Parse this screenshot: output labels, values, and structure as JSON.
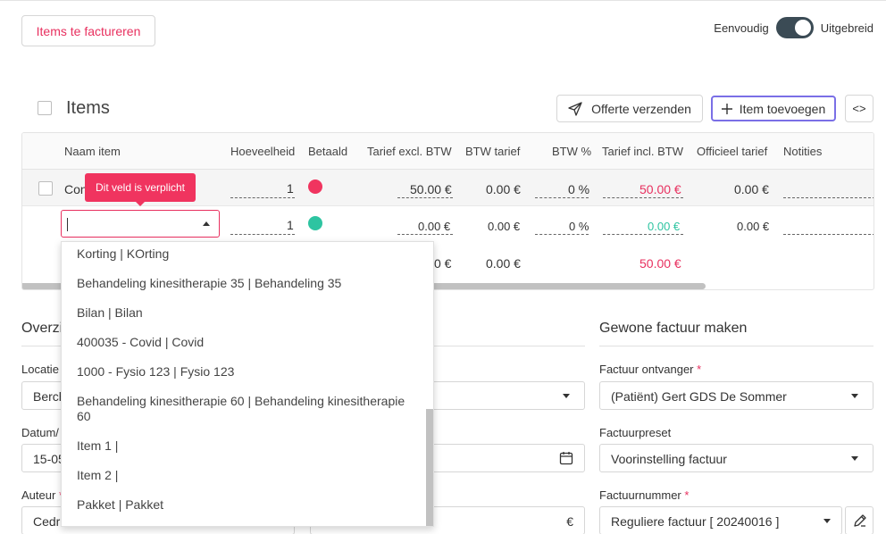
{
  "header": {
    "items_to_invoice_label": "Items te factureren",
    "toggle_left_label": "Eenvoudig",
    "toggle_right_label": "Uitgebreid"
  },
  "items": {
    "title": "Items",
    "send_quote_label": "Offerte verzenden",
    "add_item_label": "Item toevoegen",
    "code_label": "<>"
  },
  "table": {
    "columns": [
      "Naam item",
      "Hoeveelheid",
      "Betaald",
      "Tarief excl. BTW",
      "BTW tarief",
      "BTW %",
      "Tarief incl. BTW",
      "Officieel tarief",
      "Notities"
    ],
    "rows": [
      {
        "name": "Con",
        "quantity": "1",
        "paid_color": "#f0345f",
        "price_excl": "50.00 €",
        "vat_rate": "0.00 €",
        "vat_pct": "0 %",
        "price_incl": "50.00 €",
        "official": "0.00 €"
      },
      {
        "name": "",
        "quantity": "1",
        "paid_color": "#2ec4a1",
        "price_excl": "0.00 €",
        "vat_rate": "0.00 €",
        "vat_pct": "0 %",
        "price_incl": "0.00 €",
        "official": "0.00 €"
      }
    ],
    "totals": {
      "price_excl_partial": "0 €",
      "vat_rate": "0.00 €",
      "price_incl": "50.00 €"
    }
  },
  "validation_tooltip": "Dit veld is verplicht",
  "dropdown_options": [
    "Korting | KOrting",
    "Behandeling kinesitherapie  35 | Behandeling 35",
    "Bilan | Bilan",
    "400035 - Covid | Covid",
    "1000 - Fysio 123 | Fysio 123",
    "Behandeling kinesitherapie 60 | Behandeling kinesitherapie 60",
    "Item 1 |",
    "Item 2 |",
    "Pakket | Pakket"
  ],
  "overview": {
    "title_partial": "Overzi",
    "location_label_partial": "Locatie",
    "location_value_partial": "Berch",
    "date_label_partial": "Datum/",
    "date_value_partial": "15-05",
    "author_label_partial": "Auteur",
    "author_value_partial": "Cedri",
    "euro_symbol": "€"
  },
  "regular_invoice": {
    "title": "Gewone factuur maken",
    "recipient_label": "Factuur ontvanger",
    "recipient_value": "(Patiënt) Gert GDS De Sommer",
    "preset_label": "Factuurpreset",
    "preset_value": "Voorinstelling factuur",
    "number_label": "Factuurnummer",
    "number_value": "Reguliere factuur [ 20240016 ]",
    "required_mark": "*"
  },
  "colors": {
    "accent": "#e8305f",
    "toggle": "#3b4b55",
    "focus": "#7a6fe6",
    "paid_green": "#2ec4a1"
  }
}
